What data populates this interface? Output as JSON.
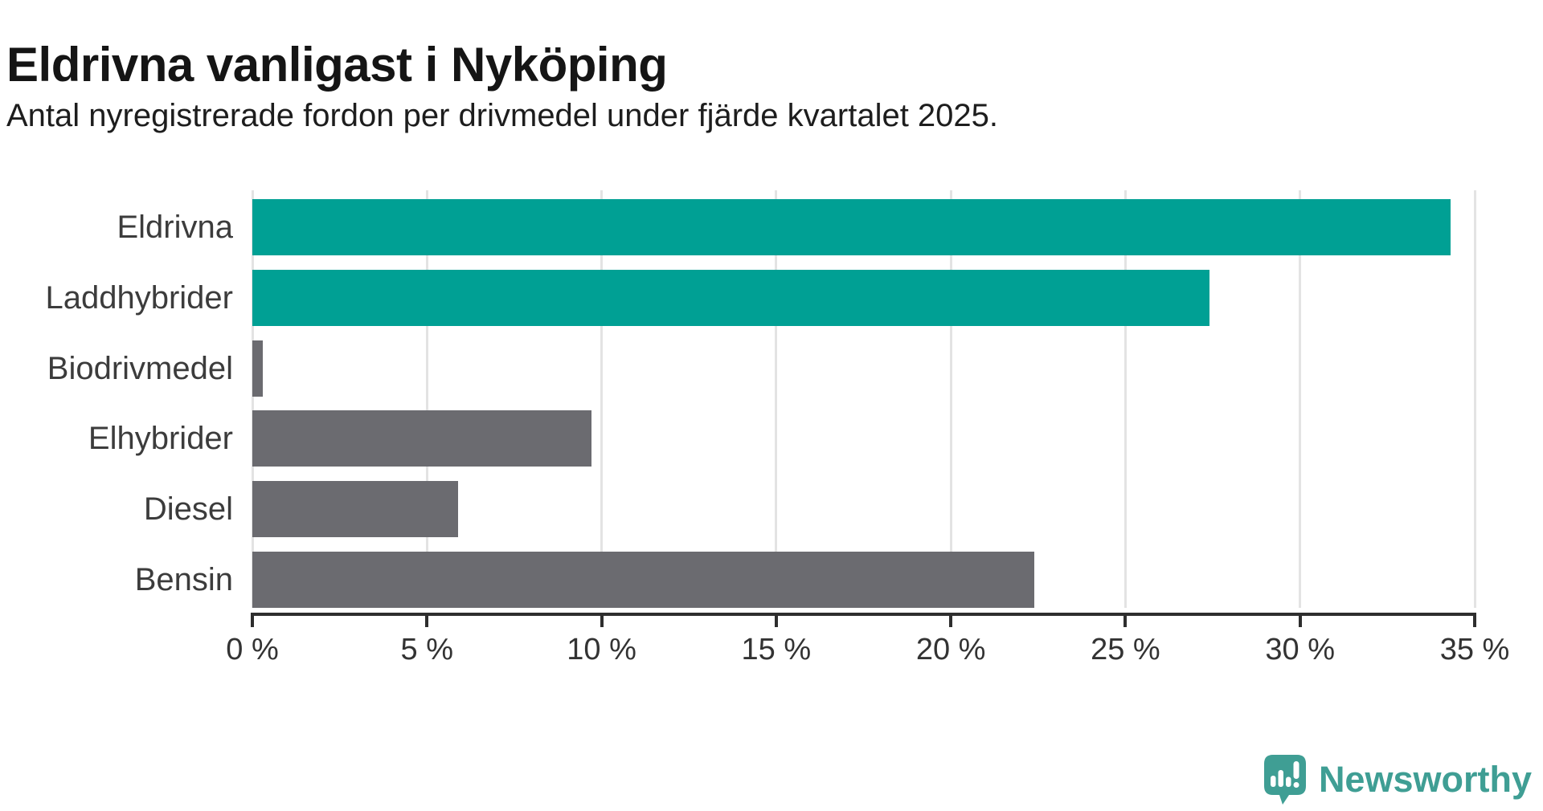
{
  "header": {
    "title": "Eldrivna vanligast i Nyköping",
    "subtitle": "Antal nyregistrerade fordon per drivmedel under fjärde kvartalet 2025."
  },
  "chart_data": {
    "type": "bar",
    "orientation": "horizontal",
    "title": "Eldrivna vanligast i Nyköping",
    "subtitle": "Antal nyregistrerade fordon per drivmedel under fjärde kvartalet 2025.",
    "categories": [
      "Eldrivna",
      "Laddhybrider",
      "Biodrivmedel",
      "Elhybrider",
      "Diesel",
      "Bensin"
    ],
    "values": [
      34.3,
      27.4,
      0.3,
      9.7,
      5.9,
      22.4
    ],
    "unit": "%",
    "series_colors": [
      "#00a094",
      "#00a094",
      "#6b6b70",
      "#6b6b70",
      "#6b6b70",
      "#6b6b70"
    ],
    "highlight_color": "#00a094",
    "default_color": "#6b6b70",
    "xlabel": "",
    "ylabel": "",
    "xlim": [
      0,
      35
    ],
    "x_ticks": [
      0,
      5,
      10,
      15,
      20,
      25,
      30,
      35
    ],
    "x_tick_labels": [
      "0 %",
      "5 %",
      "10 %",
      "15 %",
      "20 %",
      "25 %",
      "30 %",
      "35 %"
    ],
    "grid": "vertical-on",
    "legend": "none",
    "grid_color": "#e3e3e3",
    "axis_color": "#2e2e2e"
  },
  "branding": {
    "name": "Newsworthy",
    "color": "#3f9e94",
    "icon": "bar-chart-speech-bubble-icon"
  }
}
